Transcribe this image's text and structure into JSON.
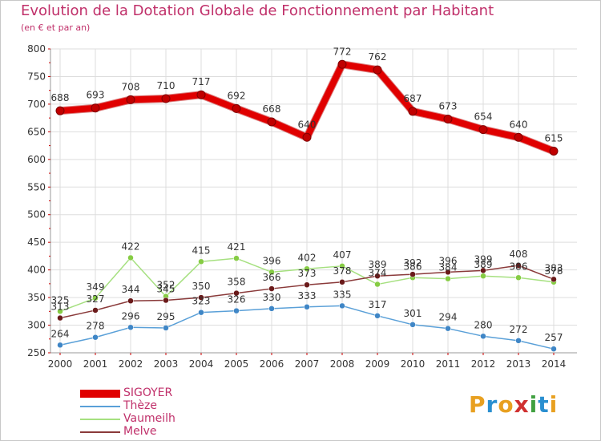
{
  "title": "Evolution de la Dotation Globale de Fonctionnement par Habitant",
  "subtitle": "(en € et par an)",
  "logo": [
    "P",
    "r",
    "o",
    "x",
    "i",
    "t",
    "i"
  ],
  "logo_colors": [
    "#e8a020",
    "#2a8fd0",
    "#e8a020",
    "#d03030",
    "#40a040",
    "#2a8fd0",
    "#e8a020"
  ],
  "chart_data": {
    "type": "line",
    "title": "Evolution de la Dotation Globale de Fonctionnement par Habitant",
    "subtitle": "(en € et par an)",
    "xlabel": "",
    "ylabel": "",
    "ylim": [
      250,
      800
    ],
    "yticks": [
      250,
      300,
      350,
      400,
      450,
      500,
      550,
      600,
      650,
      700,
      750,
      800
    ],
    "categories": [
      "2000",
      "2001",
      "2002",
      "2003",
      "2004",
      "2005",
      "2006",
      "2007",
      "2008",
      "2009",
      "2010",
      "2011",
      "2012",
      "2013",
      "2014"
    ],
    "series": [
      {
        "name": "SIGOYER",
        "color": "#e00000",
        "marker": "#c00000",
        "values": [
          688,
          693,
          708,
          710,
          717,
          692,
          668,
          640,
          772,
          762,
          687,
          673,
          654,
          640,
          615
        ]
      },
      {
        "name": "Thèze",
        "color": "#5aa0d8",
        "marker": "#3f86c6",
        "values": [
          264,
          278,
          296,
          295,
          323,
          326,
          330,
          333,
          335,
          317,
          301,
          294,
          280,
          272,
          257
        ]
      },
      {
        "name": "Vaumeilh",
        "color": "#a6e080",
        "marker": "#86cc44",
        "values": [
          325,
          349,
          422,
          352,
          415,
          421,
          396,
          402,
          407,
          374,
          386,
          384,
          389,
          386,
          378
        ]
      },
      {
        "name": "Melve",
        "color": "#8a3a3a",
        "marker": "#6a1a1a",
        "values": [
          313,
          327,
          344,
          345,
          350,
          358,
          366,
          373,
          378,
          389,
          392,
          396,
          399,
          408,
          383
        ]
      }
    ],
    "legend": [
      "SIGOYER",
      "Thèze",
      "Vaumeilh",
      "Melve"
    ]
  }
}
